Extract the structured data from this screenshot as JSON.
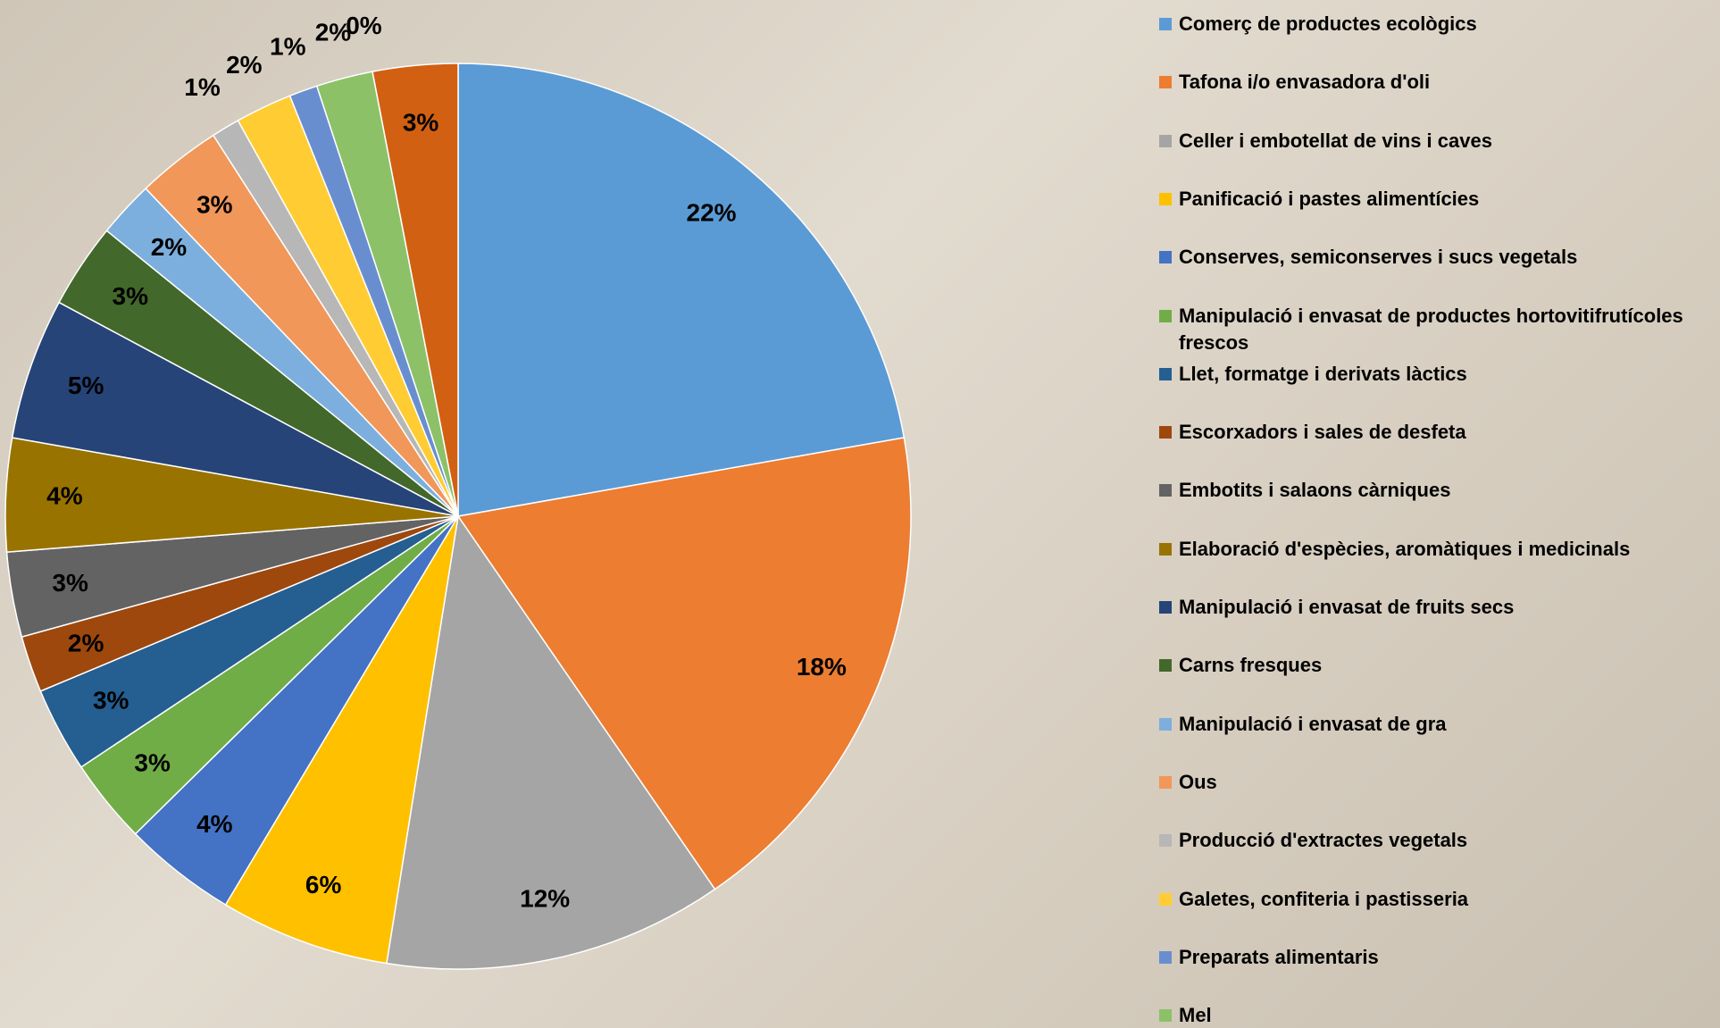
{
  "chart_data": {
    "type": "pie",
    "categories": [
      "Comerç de productes ecològics",
      "Tafona i/o envasadora d'oli",
      "Celler i embotellat de vins i caves",
      "Panificació i pastes alimentícies",
      "Conserves, semiconserves i sucs vegetals",
      "Manipulació i envasat de productes hortovitifrutícoles frescos",
      "Llet, formatge i derivats làctics",
      "Escorxadors i sales de desfeta",
      "Embotits i salaons càrniques",
      "Elaboració d'espècies, aromàtiques i medicinals",
      "Manipulació i envasat de fruits secs",
      "Carns fresques",
      "Manipulació i envasat de gra",
      "Ous",
      "Producció d'extractes vegetals",
      "Galetes, confiteria i pastisseria",
      "Preparats alimentaris",
      "Mel",
      null,
      null
    ],
    "values": [
      22,
      18,
      12,
      6,
      4,
      3,
      3,
      2,
      3,
      4,
      5,
      3,
      2,
      3,
      1,
      2,
      1,
      2,
      0,
      3
    ],
    "value_labels": [
      "22%",
      "18%",
      "12%",
      "6%",
      "4%",
      "3%",
      "3%",
      "2%",
      "3%",
      "4%",
      "5%",
      "3%",
      "2%",
      "3%",
      "1%",
      "2%",
      "1%",
      "2%",
      "0%",
      "3%"
    ],
    "colors": [
      "#5b9bd5",
      "#ed7d31",
      "#a5a5a5",
      "#ffc000",
      "#4472c4",
      "#70ad47",
      "#255e91",
      "#9e480e",
      "#636363",
      "#997300",
      "#264478",
      "#43682b",
      "#7cafdd",
      "#f1975a",
      "#b7b7b7",
      "#ffcd33",
      "#698ed0",
      "#8cc168",
      "#327dc2",
      "#d26012"
    ],
    "legend": "right"
  }
}
